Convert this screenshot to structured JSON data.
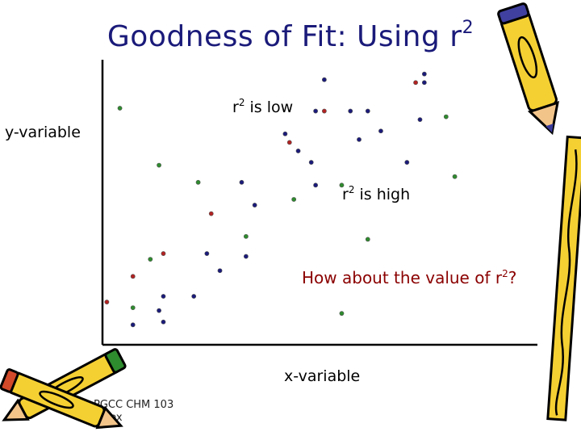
{
  "slide": {
    "title_main": "Goodness of Fit: Using r",
    "title_sup": "2",
    "footer_line1": "PGCC CHM 103",
    "footer_line2": "Sinex"
  },
  "chart_data": {
    "type": "scatter",
    "xlabel": "x-variable",
    "ylabel": "y-variable",
    "annotations": {
      "low": {
        "prefix": "r",
        "sup": "2",
        "suffix": " is low"
      },
      "high": {
        "prefix": "r",
        "sup": "2",
        "suffix": " is high"
      },
      "question": {
        "prefix": "How about the value of r",
        "sup": "2",
        "suffix": "?"
      }
    },
    "colors": {
      "blue": "#1a1a7a",
      "red": "#b22222",
      "green": "#2e8b2e",
      "axis": "#000000",
      "question": "#8b0000"
    },
    "xlim": [
      0,
      100
    ],
    "ylim": [
      0,
      100
    ],
    "series": [
      {
        "color": "blue",
        "points": [
          [
            7,
            7
          ],
          [
            14,
            8
          ],
          [
            13,
            12
          ],
          [
            14,
            17
          ],
          [
            21,
            17
          ],
          [
            27,
            26
          ],
          [
            24,
            32
          ],
          [
            33,
            31
          ],
          [
            35,
            49
          ],
          [
            32,
            57
          ],
          [
            48,
            64
          ],
          [
            45,
            68
          ],
          [
            42,
            74
          ],
          [
            49,
            56
          ],
          [
            49,
            82
          ],
          [
            51,
            93
          ],
          [
            70,
            64
          ],
          [
            59,
            72
          ],
          [
            57,
            82
          ],
          [
            61,
            82
          ],
          [
            64,
            75
          ],
          [
            73,
            79
          ],
          [
            74,
            95
          ],
          [
            74,
            92
          ]
        ]
      },
      {
        "color": "red",
        "points": [
          [
            1,
            15
          ],
          [
            7,
            24
          ],
          [
            14,
            32
          ],
          [
            25,
            46
          ],
          [
            43,
            71
          ],
          [
            51,
            82
          ],
          [
            72,
            92
          ]
        ]
      },
      {
        "color": "green",
        "points": [
          [
            7,
            13
          ],
          [
            11,
            30
          ],
          [
            4,
            83
          ],
          [
            13,
            63
          ],
          [
            22,
            57
          ],
          [
            33,
            38
          ],
          [
            44,
            51
          ],
          [
            61,
            37
          ],
          [
            55,
            56
          ],
          [
            55,
            11
          ],
          [
            79,
            80
          ],
          [
            81,
            59
          ]
        ]
      }
    ]
  }
}
